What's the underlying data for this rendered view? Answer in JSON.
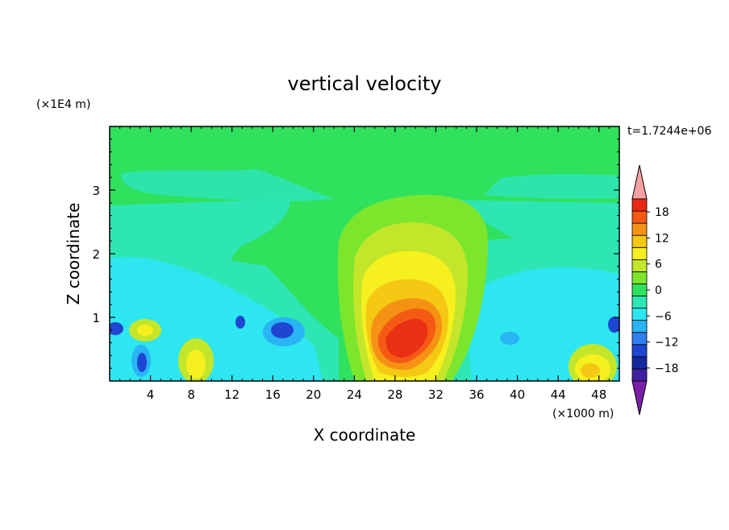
{
  "chart_data": {
    "type": "heatmap",
    "title": "vertical velocity",
    "xlabel": "X coordinate",
    "ylabel": "Z coordinate",
    "x_unit": "(×1000 m)",
    "y_unit": "(×1E4 m)",
    "time_label": "t=1.7244e+06",
    "xlim": [
      0,
      50
    ],
    "ylim": [
      0,
      4
    ],
    "x_ticks": [
      4,
      8,
      12,
      16,
      20,
      24,
      28,
      32,
      36,
      40,
      44,
      48
    ],
    "y_ticks": [
      1,
      2,
      3
    ],
    "colorbar": {
      "levels": [
        -21,
        -18,
        -15,
        -12,
        -9,
        -6,
        -3,
        0,
        3,
        6,
        9,
        12,
        15,
        18,
        21
      ],
      "labels": [
        18,
        12,
        6,
        0,
        -6,
        -12,
        -18
      ],
      "colors": [
        "#7a1fa8",
        "#3d1fa0",
        "#1428a0",
        "#1e46d2",
        "#2f7ff0",
        "#28b4f5",
        "#2ee6f0",
        "#2ee6b4",
        "#2fe15c",
        "#7ce62d",
        "#c4e62a",
        "#f5f01e",
        "#f5c814",
        "#f59214",
        "#f55a14",
        "#e62814",
        "#f5a0a0"
      ]
    },
    "features": [
      {
        "kind": "updraft",
        "x": 29,
        "z": 0.8,
        "max_w": 18
      },
      {
        "kind": "updraft",
        "x": 47,
        "z": 0.25,
        "max_w": 9
      },
      {
        "kind": "updraft",
        "x": 8.5,
        "z": 0.3,
        "max_w": 9
      },
      {
        "kind": "updraft",
        "x": 3.5,
        "z": 0.75,
        "max_w": 9
      },
      {
        "kind": "downdraft",
        "x": 17,
        "z": 0.75,
        "max_w": -12
      },
      {
        "kind": "downdraft",
        "x": 3,
        "z": 0.3,
        "max_w": -12
      },
      {
        "kind": "downdraft",
        "x": 0.5,
        "z": 0.8,
        "max_w": -9
      }
    ]
  }
}
